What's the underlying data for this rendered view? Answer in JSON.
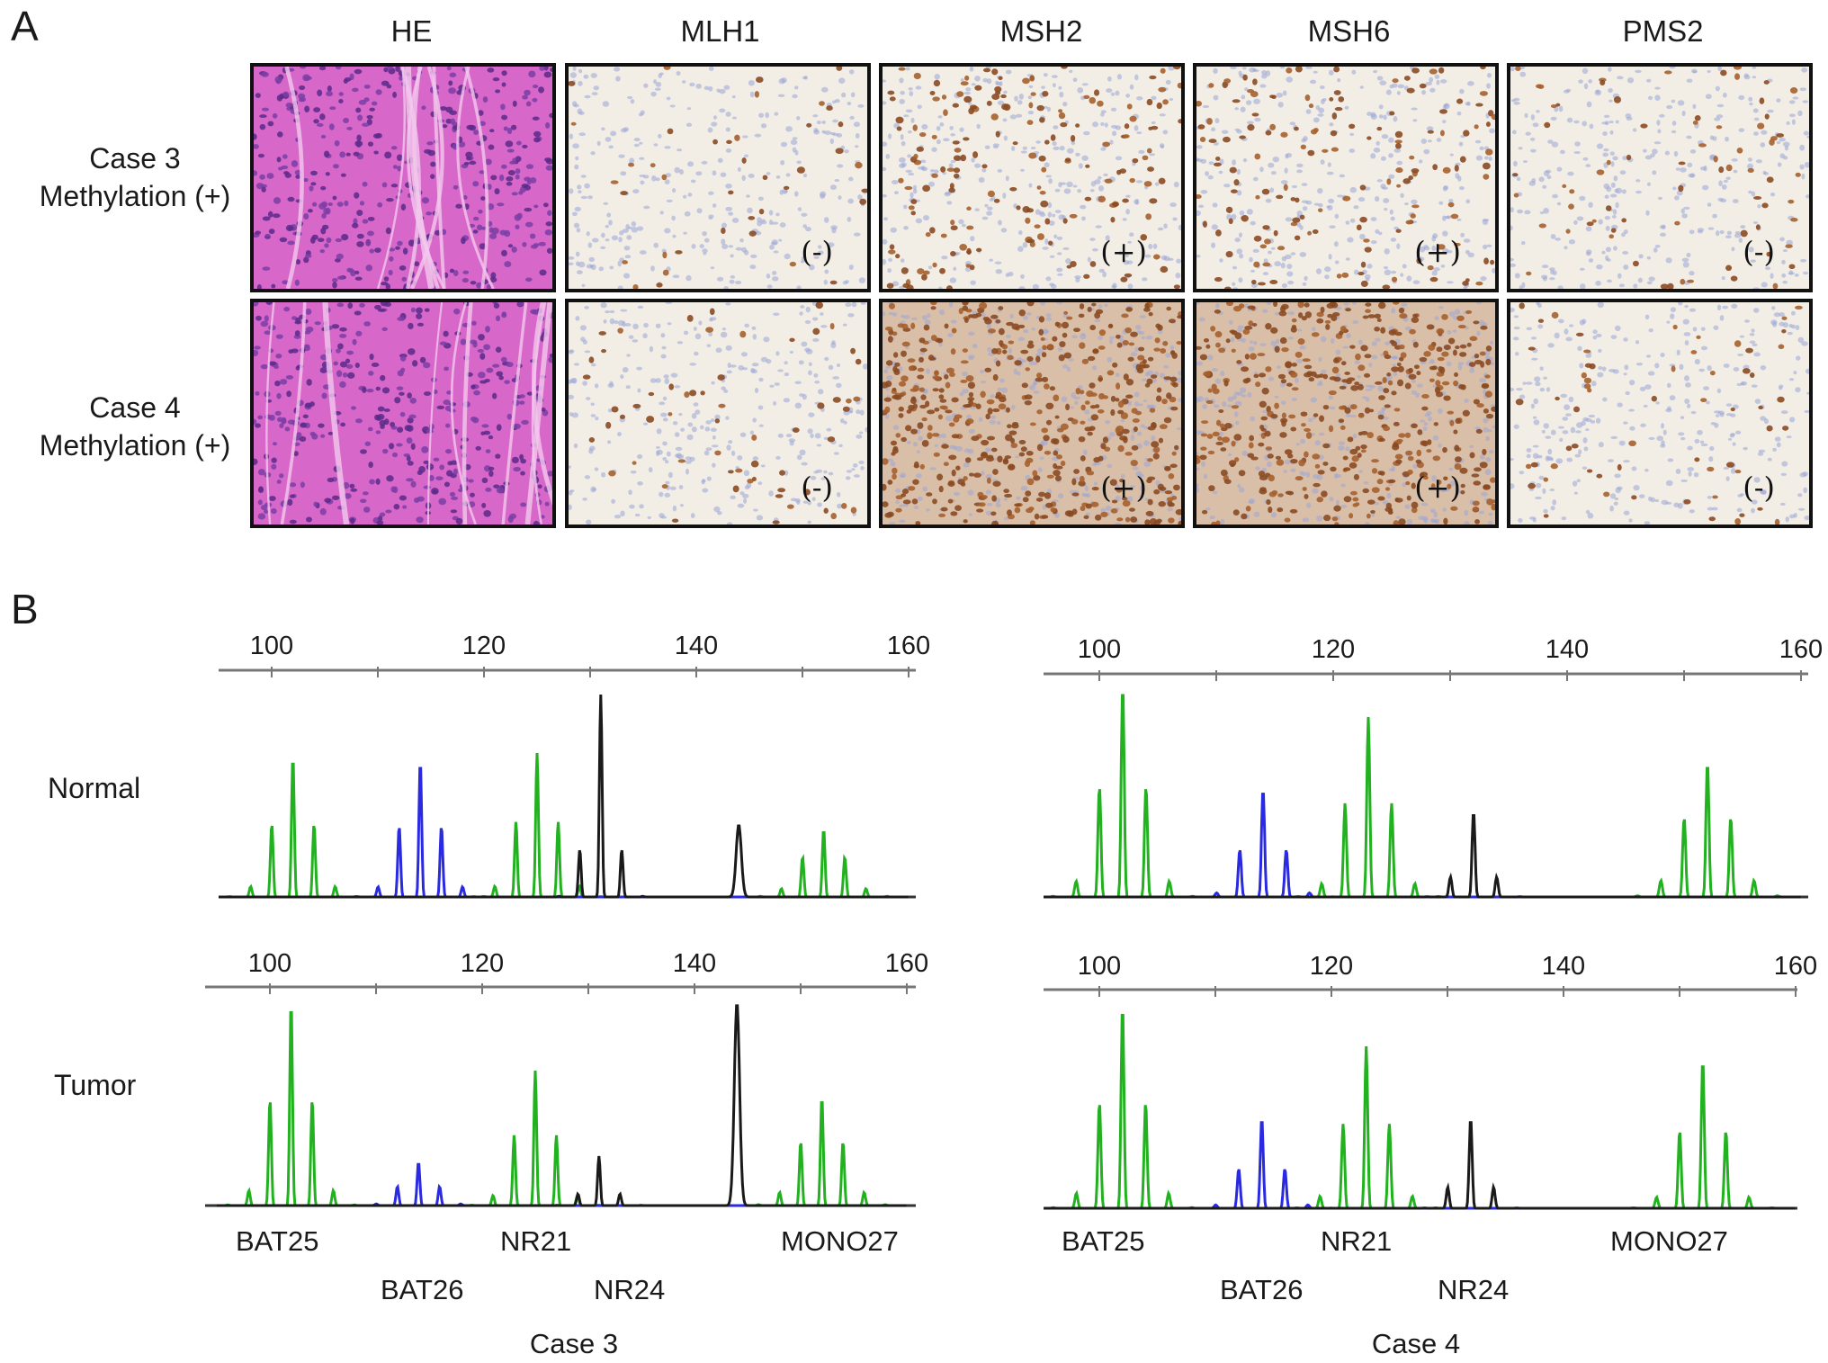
{
  "panel_a": {
    "letter": "A",
    "columns": [
      "HE",
      "MLH1",
      "MSH2",
      "MSH6",
      "PMS2"
    ],
    "rows": [
      {
        "case": "Case 3",
        "methylation": "Methylation (+)",
        "labels": [
          "",
          "(-)",
          "(+)",
          "(+)",
          "(-)"
        ]
      },
      {
        "case": "Case 4",
        "methylation": "Methylation (+)",
        "labels": [
          "",
          "(-)",
          "(+)",
          "(+)",
          "(-)"
        ]
      }
    ]
  },
  "panel_b": {
    "letter": "B",
    "row_labels": [
      "Normal",
      "Tumor"
    ],
    "axis_ticks": [
      "100",
      "120",
      "140",
      "160"
    ],
    "cases": [
      {
        "name": "Case 3",
        "markers_top": [
          "BAT25",
          "NR21",
          "MONO27"
        ],
        "markers_bottom": [
          "BAT26",
          "NR24"
        ]
      },
      {
        "name": "Case 4",
        "markers_top": [
          "BAT25",
          "NR21",
          "MONO27"
        ],
        "markers_bottom": [
          "BAT26",
          "NR24"
        ]
      }
    ]
  },
  "colors": {
    "green": "#22b21f",
    "blue": "#2a2ae0",
    "black": "#1a1a1a",
    "he_pink": "#d767c8",
    "dab_brown": "#8a4a22",
    "hematoxylin_blue": "#9aa6d6"
  }
}
